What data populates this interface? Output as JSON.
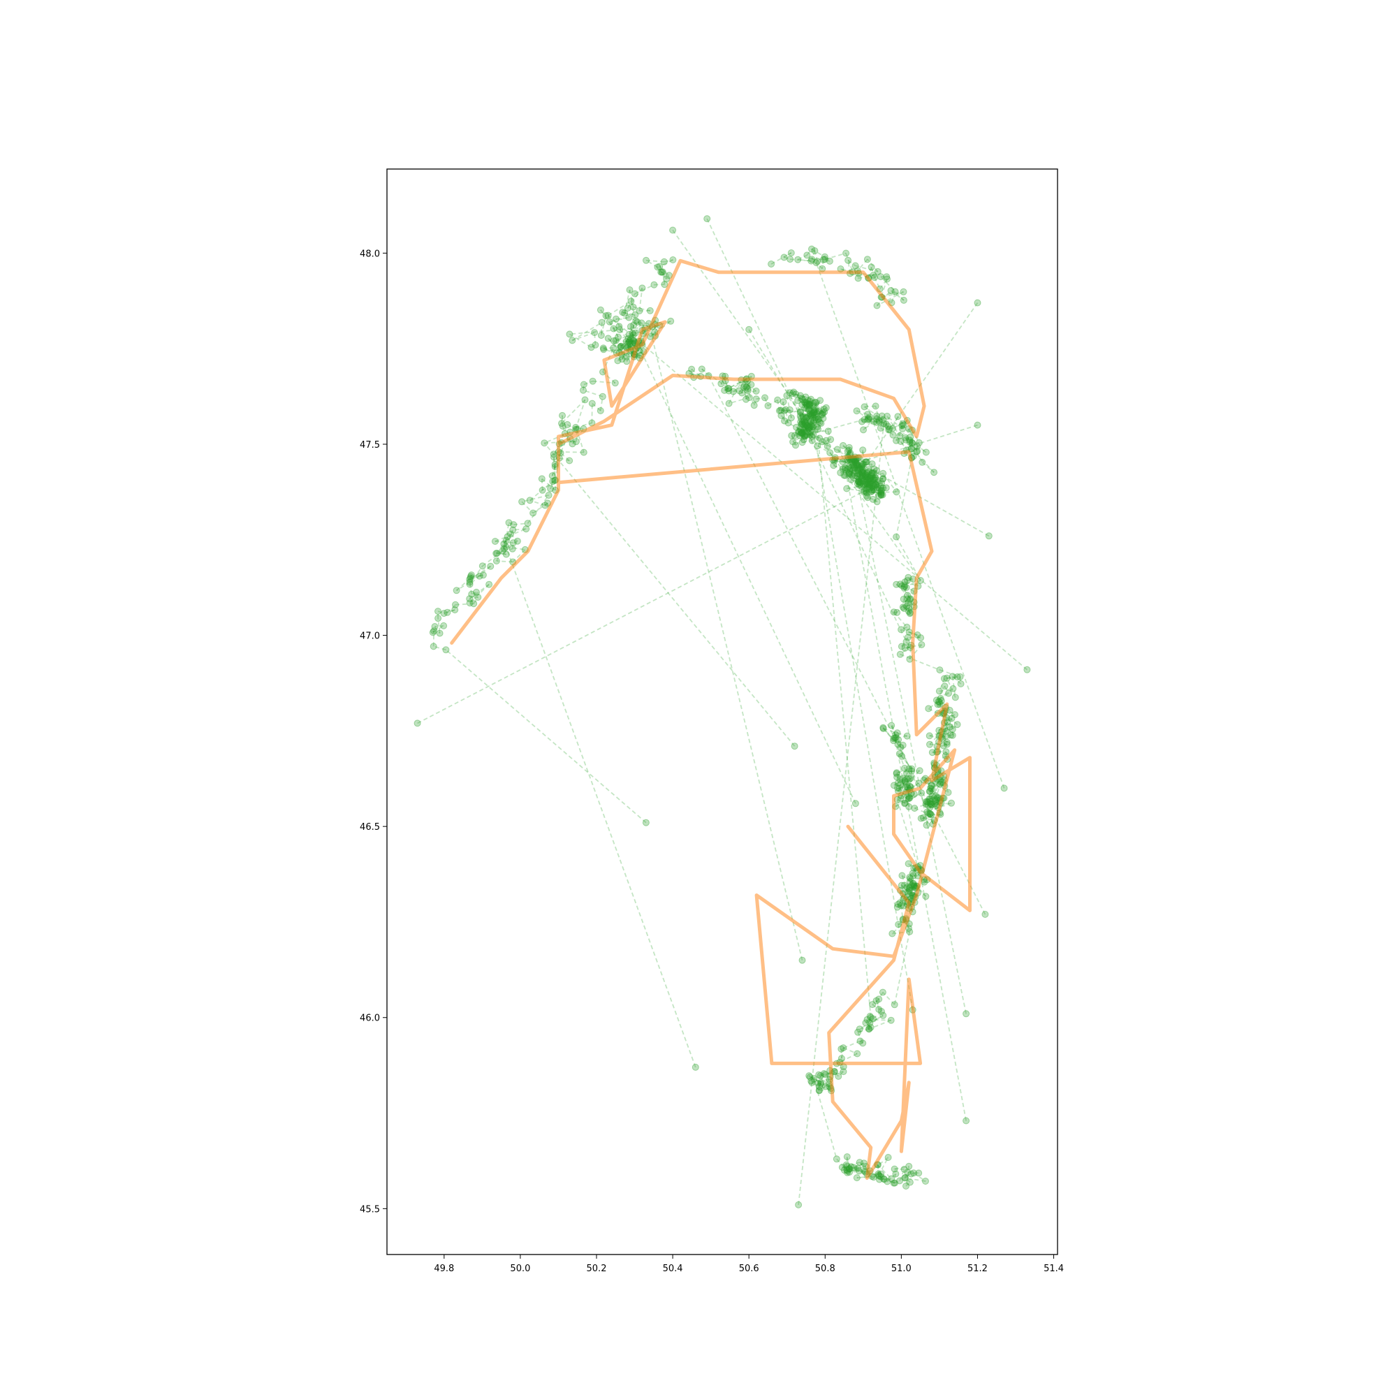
{
  "chart_data": {
    "type": "scatter",
    "title": "",
    "xlabel": "",
    "ylabel": "",
    "xlim": [
      49.65,
      51.41
    ],
    "ylim": [
      45.38,
      48.22
    ],
    "grid": false,
    "x_ticks": [
      "49.8",
      "50.0",
      "50.2",
      "50.4",
      "50.6",
      "50.8",
      "51.0",
      "51.2",
      "51.4"
    ],
    "y_ticks": [
      "45.5",
      "46.0",
      "46.5",
      "47.0",
      "47.5",
      "48.0"
    ],
    "colors": {
      "route": "#ff7f0e",
      "tracks": "#2ca02c"
    },
    "series": [
      {
        "style": "solid-thick",
        "points": [
          [
            49.82,
            46.98
          ],
          [
            49.95,
            47.15
          ],
          [
            50.02,
            47.22
          ],
          [
            50.1,
            47.38
          ],
          [
            50.1,
            47.52
          ],
          [
            50.24,
            47.55
          ],
          [
            50.32,
            47.8
          ],
          [
            50.38,
            47.82
          ],
          [
            50.24,
            47.6
          ],
          [
            50.22,
            47.72
          ],
          [
            50.32,
            47.76
          ],
          [
            50.42,
            47.98
          ],
          [
            50.52,
            47.95
          ],
          [
            50.9,
            47.95
          ],
          [
            51.02,
            47.8
          ],
          [
            51.06,
            47.6
          ],
          [
            51.04,
            47.52
          ],
          [
            50.98,
            47.62
          ],
          [
            50.84,
            47.67
          ],
          [
            50.56,
            47.67
          ],
          [
            50.4,
            47.68
          ],
          [
            50.22,
            47.56
          ],
          [
            50.1,
            47.5
          ],
          [
            50.1,
            47.4
          ],
          [
            51.02,
            47.48
          ],
          [
            51.08,
            47.22
          ],
          [
            51.04,
            47.15
          ],
          [
            51.03,
            46.98
          ],
          [
            51.04,
            46.74
          ],
          [
            51.12,
            46.82
          ],
          [
            51.08,
            46.62
          ],
          [
            51.18,
            46.68
          ],
          [
            51.18,
            46.28
          ],
          [
            51.05,
            46.38
          ],
          [
            50.98,
            46.48
          ],
          [
            50.98,
            46.58
          ],
          [
            51.05,
            46.6
          ],
          [
            51.14,
            46.7
          ],
          [
            51.04,
            46.32
          ],
          [
            50.98,
            46.16
          ],
          [
            50.82,
            46.18
          ],
          [
            50.62,
            46.32
          ],
          [
            50.66,
            45.88
          ],
          [
            51.05,
            45.88
          ],
          [
            51.02,
            46.1
          ],
          [
            51.0,
            45.65
          ],
          [
            51.02,
            45.83
          ],
          [
            51.0,
            45.73
          ],
          [
            50.91,
            45.58
          ],
          [
            50.92,
            45.66
          ],
          [
            50.82,
            45.78
          ],
          [
            50.81,
            45.96
          ],
          [
            50.98,
            46.15
          ],
          [
            51.02,
            46.3
          ],
          [
            50.86,
            46.5
          ]
        ]
      },
      {
        "style": "dashed-markers",
        "clusters": [
          {
            "poly": [
              [
                49.75,
                46.88
              ],
              [
                49.8,
                47.05
              ],
              [
                49.9,
                47.15
              ],
              [
                50.05,
                47.35
              ],
              [
                50.14,
                47.55
              ],
              [
                50.24,
                47.72
              ],
              [
                50.35,
                47.82
              ]
            ],
            "count": 170,
            "spread": 0.035
          },
          {
            "poly": [
              [
                50.16,
                47.75
              ],
              [
                50.28,
                47.85
              ],
              [
                50.38,
                47.95
              ],
              [
                50.48,
                48.02
              ],
              [
                50.6,
                48.04
              ]
            ],
            "count": 40,
            "spread": 0.04
          },
          {
            "poly": [
              [
                50.6,
                48.0
              ],
              [
                50.75,
                47.98
              ],
              [
                50.88,
                47.97
              ],
              [
                50.98,
                47.88
              ],
              [
                51.04,
                47.78
              ],
              [
                51.12,
                47.72
              ]
            ],
            "count": 45,
            "spread": 0.035
          },
          {
            "poly": [
              [
                50.38,
                47.72
              ],
              [
                50.5,
                47.67
              ],
              [
                50.62,
                47.62
              ],
              [
                50.7,
                47.58
              ],
              [
                50.78,
                47.52
              ],
              [
                50.86,
                47.46
              ],
              [
                50.94,
                47.38
              ]
            ],
            "count": 240,
            "spread": 0.035
          },
          {
            "poly": [
              [
                50.72,
                47.63
              ],
              [
                50.78,
                47.58
              ],
              [
                50.74,
                47.52
              ]
            ],
            "count": 110,
            "spread": 0.025
          },
          {
            "poly": [
              [
                50.9,
                47.58
              ],
              [
                50.98,
                47.55
              ],
              [
                51.04,
                47.48
              ],
              [
                51.08,
                47.38
              ],
              [
                51.1,
                47.25
              ]
            ],
            "count": 60,
            "spread": 0.03
          },
          {
            "poly": [
              [
                51.0,
                47.25
              ],
              [
                51.02,
                47.0
              ],
              [
                51.03,
                46.78
              ],
              [
                51.02,
                46.6
              ]
            ],
            "count": 45,
            "spread": 0.025
          },
          {
            "poly": [
              [
                51.14,
                46.94
              ],
              [
                51.12,
                46.8
              ],
              [
                51.1,
                46.68
              ],
              [
                51.08,
                46.55
              ],
              [
                51.06,
                46.45
              ]
            ],
            "count": 130,
            "spread": 0.028
          },
          {
            "poly": [
              [
                50.96,
                46.8
              ],
              [
                51.0,
                46.65
              ],
              [
                51.02,
                46.5
              ],
              [
                51.04,
                46.4
              ]
            ],
            "count": 60,
            "spread": 0.03
          },
          {
            "poly": [
              [
                51.04,
                46.4
              ],
              [
                51.02,
                46.3
              ],
              [
                51.0,
                46.2
              ],
              [
                50.98,
                46.12
              ]
            ],
            "count": 70,
            "spread": 0.025
          },
          {
            "poly": [
              [
                50.98,
                46.1
              ],
              [
                50.92,
                46.0
              ],
              [
                50.84,
                45.88
              ],
              [
                50.76,
                45.8
              ],
              [
                50.66,
                45.74
              ],
              [
                50.6,
                45.66
              ]
            ],
            "count": 55,
            "spread": 0.03
          },
          {
            "poly": [
              [
                50.8,
                45.62
              ],
              [
                50.9,
                45.6
              ],
              [
                51.0,
                45.58
              ],
              [
                51.1,
                45.58
              ],
              [
                51.18,
                45.58
              ]
            ],
            "count": 55,
            "spread": 0.03
          }
        ],
        "outliers": [
          [
            50.33,
            46.51
          ],
          [
            50.46,
            45.87
          ],
          [
            50.72,
            46.71
          ],
          [
            50.88,
            46.56
          ],
          [
            50.74,
            46.15
          ],
          [
            51.33,
            46.91
          ],
          [
            51.27,
            46.6
          ],
          [
            51.22,
            46.27
          ],
          [
            51.23,
            47.26
          ],
          [
            51.2,
            47.55
          ],
          [
            51.2,
            47.87
          ],
          [
            49.73,
            46.77
          ],
          [
            51.17,
            45.73
          ],
          [
            51.17,
            46.01
          ],
          [
            50.92,
            46.0
          ],
          [
            51.03,
            46.02
          ],
          [
            50.6,
            47.8
          ],
          [
            50.73,
            45.51
          ],
          [
            50.4,
            48.06
          ],
          [
            50.49,
            48.09
          ]
        ]
      }
    ]
  }
}
